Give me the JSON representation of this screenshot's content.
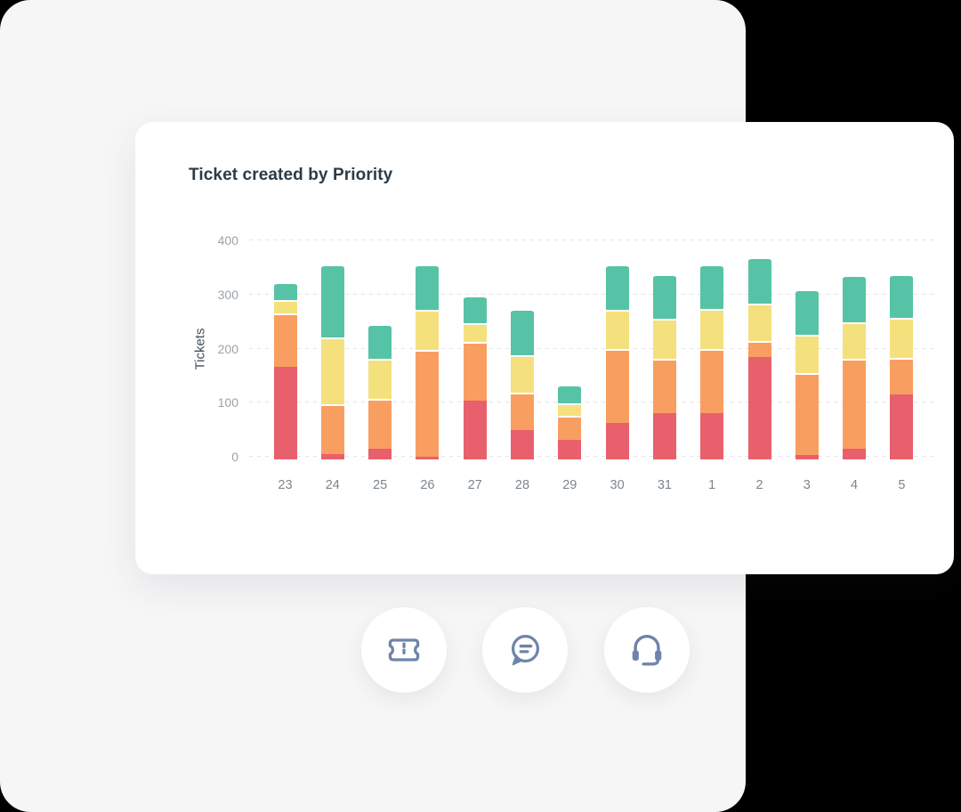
{
  "card": {
    "title": "Ticket created by Priority"
  },
  "chart_data": {
    "type": "bar",
    "stacked": true,
    "title": "Ticket created by Priority",
    "xlabel": "",
    "ylabel": "Tickets",
    "ylim": [
      0,
      400
    ],
    "yticks": [
      0,
      100,
      200,
      300,
      400
    ],
    "grid": "horizontal dashed",
    "legend_position": "none",
    "categories": [
      "23",
      "24",
      "25",
      "26",
      "27",
      "28",
      "29",
      "30",
      "31",
      "1",
      "2",
      "3",
      "4",
      "5"
    ],
    "series": [
      {
        "name": "red-bottom-segment",
        "color": "#E8606C",
        "values": [
          171,
          10,
          20,
          5,
          108,
          54,
          37,
          68,
          86,
          86,
          189,
          9,
          20,
          120
        ]
      },
      {
        "name": "orange-segment",
        "color": "#F99E61",
        "values": [
          99,
          92,
          92,
          198,
          109,
          69,
          43,
          136,
          100,
          118,
          30,
          151,
          166,
          67
        ]
      },
      {
        "name": "yellow-segment",
        "color": "#F5E07E",
        "values": [
          25,
          123,
          74,
          74,
          35,
          70,
          24,
          73,
          74,
          74,
          69,
          70,
          68,
          74
        ]
      },
      {
        "name": "green-top-segment",
        "color": "#57C3A6",
        "values": [
          32,
          135,
          65,
          83,
          51,
          86,
          34,
          83,
          82,
          82,
          86,
          85,
          86,
          81
        ]
      }
    ],
    "totals": [
      327,
      360,
      251,
      360,
      303,
      279,
      138,
      360,
      342,
      360,
      374,
      315,
      340,
      342
    ]
  },
  "colors": {
    "page_background": "#000000",
    "panel_background": "#F6F6F7",
    "card_background": "#FFFFFF",
    "title_text": "#2C3B47",
    "axis_tick_text": "#9BA3AA",
    "x_tick_text": "#7C858D",
    "icon": "#6F84AB"
  },
  "buttons": [
    {
      "icon": "ticket-icon"
    },
    {
      "icon": "chat-icon"
    },
    {
      "icon": "headset-icon"
    }
  ]
}
